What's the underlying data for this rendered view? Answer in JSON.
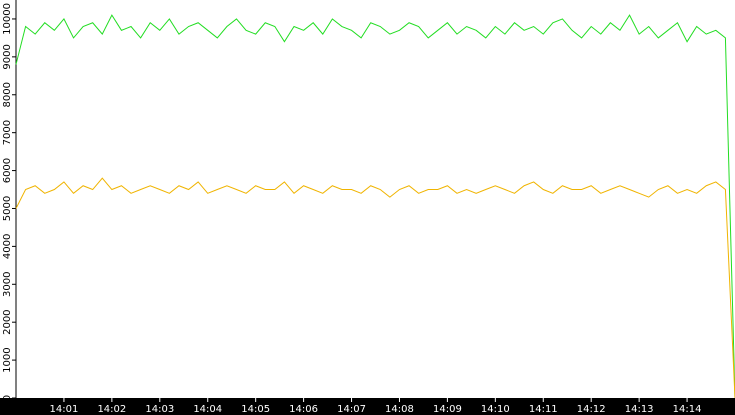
{
  "chart_data": {
    "type": "line",
    "x": [
      840,
      840.2,
      840.4,
      840.6,
      840.8,
      841,
      841.2,
      841.4,
      841.6,
      841.8,
      842,
      842.2,
      842.4,
      842.6,
      842.8,
      843,
      843.2,
      843.4,
      843.6,
      843.8,
      844,
      844.2,
      844.4,
      844.6,
      844.8,
      845,
      845.2,
      845.4,
      845.6,
      845.8,
      846,
      846.2,
      846.4,
      846.6,
      846.8,
      847,
      847.2,
      847.4,
      847.6,
      847.8,
      848,
      848.2,
      848.4,
      848.6,
      848.8,
      849,
      849.2,
      849.4,
      849.6,
      849.8,
      850,
      850.2,
      850.4,
      850.6,
      850.8,
      851,
      851.2,
      851.4,
      851.6,
      851.8,
      852,
      852.2,
      852.4,
      852.6,
      852.8,
      853,
      853.2,
      853.4,
      853.6,
      853.8,
      854,
      854.2,
      854.4,
      854.6,
      854.8,
      855
    ],
    "series": [
      {
        "color": "#22dd22",
        "values": [
          8800,
          9800,
          9600,
          9900,
          9700,
          10000,
          9500,
          9800,
          9900,
          9600,
          10100,
          9700,
          9800,
          9500,
          9900,
          9700,
          10000,
          9600,
          9800,
          9900,
          9700,
          9500,
          9800,
          10000,
          9700,
          9600,
          9900,
          9800,
          9400,
          9800,
          9700,
          9900,
          9600,
          10000,
          9800,
          9700,
          9500,
          9900,
          9800,
          9600,
          9700,
          9900,
          9800,
          9500,
          9700,
          9900,
          9600,
          9800,
          9700,
          9500,
          9800,
          9600,
          9900,
          9700,
          9800,
          9600,
          9900,
          10000,
          9700,
          9500,
          9800,
          9600,
          9900,
          9700,
          10100,
          9600,
          9800,
          9500,
          9700,
          9900,
          9400,
          9800,
          9600,
          9700,
          9500,
          0
        ]
      },
      {
        "color": "#f0b400",
        "values": [
          5000,
          5500,
          5600,
          5400,
          5500,
          5700,
          5400,
          5600,
          5500,
          5800,
          5500,
          5600,
          5400,
          5500,
          5600,
          5500,
          5400,
          5600,
          5500,
          5700,
          5400,
          5500,
          5600,
          5500,
          5400,
          5600,
          5500,
          5500,
          5700,
          5400,
          5600,
          5500,
          5400,
          5600,
          5500,
          5500,
          5400,
          5600,
          5500,
          5300,
          5500,
          5600,
          5400,
          5500,
          5500,
          5600,
          5400,
          5500,
          5400,
          5500,
          5600,
          5500,
          5400,
          5600,
          5700,
          5500,
          5400,
          5600,
          5500,
          5500,
          5600,
          5400,
          5500,
          5600,
          5500,
          5400,
          5300,
          5500,
          5600,
          5400,
          5500,
          5400,
          5600,
          5700,
          5500,
          0
        ]
      }
    ],
    "xlim": [
      840,
      855
    ],
    "xticks": [
      {
        "value": 841,
        "label": "14:01"
      },
      {
        "value": 842,
        "label": "14:02"
      },
      {
        "value": 843,
        "label": "14:03"
      },
      {
        "value": 844,
        "label": "14:04"
      },
      {
        "value": 845,
        "label": "14:05"
      },
      {
        "value": 846,
        "label": "14:06"
      },
      {
        "value": 847,
        "label": "14:07"
      },
      {
        "value": 848,
        "label": "14:08"
      },
      {
        "value": 849,
        "label": "14:09"
      },
      {
        "value": 850,
        "label": "14:10"
      },
      {
        "value": 851,
        "label": "14:11"
      },
      {
        "value": 852,
        "label": "14:12"
      },
      {
        "value": 853,
        "label": "14:13"
      },
      {
        "value": 854,
        "label": "14:14"
      }
    ],
    "ylim": [
      0,
      10500
    ],
    "yticks": [
      0,
      1000,
      2000,
      3000,
      4000,
      5000,
      6000,
      7000,
      8000,
      9000,
      10000
    ]
  }
}
